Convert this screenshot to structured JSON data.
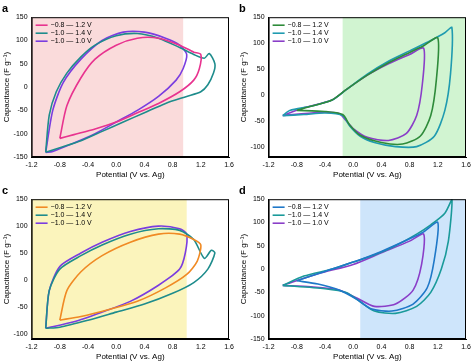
{
  "chart_data": [
    {
      "type": "line",
      "title": "a",
      "x_label": "Potential (V vs. Ag)",
      "y_label": "Capacitance (F g⁻¹)",
      "xlim": [
        -1.2,
        1.6
      ],
      "xticks": [
        -1.2,
        -0.8,
        -0.4,
        {
          "value": 0,
          "label": "0.0"
        },
        0.4,
        0.8,
        1.2,
        1.6
      ],
      "ylim": [
        -150,
        150
      ],
      "yticks": [
        -150,
        -100,
        -50,
        0,
        50,
        100,
        150
      ],
      "legend": "top-left",
      "grid": false,
      "band": {
        "range": [
          -1.2,
          0.95
        ],
        "color": "rgba(248,200,200,0.65)"
      },
      "series": [
        {
          "name": "−0.8 — 1.2 V",
          "color": "#e8338f",
          "x": [
            -0.8,
            -0.7,
            -0.5,
            -0.3,
            0,
            0.3,
            0.6,
            0.9,
            1.1,
            1.2,
            1.18,
            1.1,
            0.9,
            0.6,
            0.3,
            0,
            -0.3,
            -0.6,
            -0.8
          ],
          "y": [
            -110,
            -40,
            20,
            60,
            90,
            105,
            105,
            90,
            75,
            70,
            40,
            15,
            -10,
            -35,
            -55,
            -75,
            -90,
            -102,
            -110
          ]
        },
        {
          "name": "−1.0 — 1.4 V",
          "color": "#1e8c8c",
          "x": [
            -1.0,
            -0.95,
            -0.85,
            -0.7,
            -0.5,
            -0.3,
            0,
            0.3,
            0.6,
            0.9,
            1.1,
            1.25,
            1.32,
            1.4,
            1.38,
            1.3,
            1.2,
            1.0,
            0.7,
            0.4,
            0.1,
            -0.2,
            -0.5,
            -0.8,
            -1.0
          ],
          "y": [
            -140,
            -60,
            -10,
            30,
            65,
            90,
            110,
            115,
            105,
            85,
            70,
            62,
            72,
            50,
            30,
            5,
            -10,
            -20,
            -35,
            -55,
            -75,
            -95,
            -115,
            -130,
            -140
          ]
        },
        {
          "name": "−1.0 — 1.0 V",
          "color": "#7a3de0",
          "x": [
            -1.0,
            -0.9,
            -0.75,
            -0.5,
            -0.2,
            0.1,
            0.4,
            0.7,
            0.9,
            1.0,
            0.95,
            0.85,
            0.6,
            0.3,
            0,
            -0.3,
            -0.6,
            -0.9,
            -1.0
          ],
          "y": [
            -140,
            -50,
            10,
            60,
            100,
            118,
            118,
            105,
            90,
            70,
            40,
            15,
            -20,
            -50,
            -75,
            -100,
            -120,
            -138,
            -140
          ]
        }
      ]
    },
    {
      "type": "line",
      "title": "b",
      "x_label": "Potential (V vs. Ag)",
      "y_label": "Capacitance (F g⁻¹)",
      "xlim": [
        -1.2,
        1.6
      ],
      "xticks": [
        -1.2,
        -0.8,
        -0.4,
        {
          "value": 0,
          "label": "0.0"
        },
        0.4,
        0.8,
        1.2,
        1.6
      ],
      "ylim": [
        -120,
        150
      ],
      "yticks": [
        -100,
        -50,
        0,
        50,
        100,
        150
      ],
      "legend": "top-left",
      "grid": false,
      "band": {
        "range": [
          -0.15,
          1.6
        ],
        "color": "rgba(190,240,190,0.7)"
      },
      "series": [
        {
          "name": "−0.8 — 1.2 V",
          "color": "#2e8b3a",
          "x": [
            -0.8,
            -0.6,
            -0.3,
            -0.1,
            0.2,
            0.5,
            0.8,
            1.0,
            1.2,
            1.18,
            1.1,
            0.95,
            0.7,
            0.4,
            0.1,
            -0.05,
            -0.15,
            -0.4,
            -0.8
          ],
          "y": [
            -30,
            -22,
            -10,
            10,
            38,
            62,
            82,
            95,
            110,
            30,
            -40,
            -80,
            -95,
            -92,
            -78,
            -58,
            -38,
            -32,
            -30
          ]
        },
        {
          "name": "−1.0 — 1.4 V",
          "color": "#1f9bb0",
          "x": [
            -1.0,
            -0.9,
            -0.6,
            -0.3,
            -0.1,
            0.2,
            0.5,
            0.8,
            1.1,
            1.3,
            1.4,
            1.38,
            1.3,
            1.15,
            0.9,
            0.6,
            0.3,
            0.1,
            -0.05,
            -0.15,
            -0.4,
            -0.7,
            -1.0
          ],
          "y": [
            -40,
            -30,
            -22,
            -10,
            10,
            40,
            65,
            85,
            105,
            120,
            130,
            40,
            -30,
            -80,
            -100,
            -100,
            -92,
            -80,
            -60,
            -40,
            -35,
            -38,
            -40
          ]
        },
        {
          "name": "−1.0 — 1.0 V",
          "color": "#8a3ec8",
          "x": [
            -1.0,
            -0.7,
            -0.3,
            -0.1,
            0.2,
            0.5,
            0.8,
            1.0,
            0.98,
            0.9,
            0.75,
            0.5,
            0.2,
            0,
            -0.1,
            -0.2,
            -0.5,
            -1.0
          ],
          "y": [
            -40,
            -25,
            -10,
            10,
            38,
            60,
            78,
            90,
            20,
            -40,
            -75,
            -88,
            -82,
            -65,
            -50,
            -36,
            -34,
            -40
          ]
        }
      ]
    },
    {
      "type": "line",
      "title": "c",
      "x_label": "Potential (V vs. Ag)",
      "y_label": "Capacitance (F g⁻¹)",
      "xlim": [
        -1.2,
        1.6
      ],
      "xticks": [
        -1.2,
        -0.8,
        -0.4,
        {
          "value": 0,
          "label": "0.0"
        },
        0.4,
        0.8,
        1.2,
        1.6
      ],
      "ylim": [
        -110,
        150
      ],
      "yticks": [
        -100,
        -50,
        0,
        50,
        100,
        150
      ],
      "legend": "top-left",
      "grid": false,
      "band": {
        "range": [
          -1.2,
          1.0
        ],
        "color": "rgba(250,240,160,0.7)"
      },
      "series": [
        {
          "name": "−0.8 — 1.2 V",
          "color": "#f08a24",
          "x": [
            -0.8,
            -0.7,
            -0.5,
            -0.2,
            0.2,
            0.6,
            0.9,
            1.1,
            1.2,
            1.15,
            1.0,
            0.7,
            0.3,
            -0.1,
            -0.5,
            -0.8
          ],
          "y": [
            -75,
            -20,
            15,
            45,
            70,
            85,
            85,
            75,
            65,
            35,
            10,
            -15,
            -40,
            -55,
            -68,
            -75
          ]
        },
        {
          "name": "−1.0 — 1.4 V",
          "color": "#1e8c8c",
          "x": [
            -1.0,
            -0.95,
            -0.8,
            -0.5,
            -0.2,
            0.2,
            0.6,
            0.9,
            1.1,
            1.25,
            1.35,
            1.4,
            1.3,
            1.1,
            0.8,
            0.4,
            0,
            -0.4,
            -0.8,
            -1.0
          ],
          "y": [
            -90,
            -20,
            20,
            45,
            65,
            85,
            95,
            92,
            75,
            40,
            55,
            50,
            20,
            -5,
            -25,
            -45,
            -60,
            -75,
            -88,
            -90
          ]
        },
        {
          "name": "−1.0 — 1.0 V",
          "color": "#7a3de0",
          "x": [
            -1.0,
            -0.95,
            -0.8,
            -0.5,
            -0.2,
            0.2,
            0.6,
            0.9,
            1.0,
            0.98,
            0.9,
            0.6,
            0.2,
            -0.2,
            -0.6,
            -1.0
          ],
          "y": [
            -90,
            -20,
            25,
            50,
            70,
            90,
            100,
            95,
            85,
            50,
            20,
            -10,
            -40,
            -60,
            -78,
            -90
          ]
        }
      ]
    },
    {
      "type": "line",
      "title": "d",
      "x_label": "Potential (V vs. Ag)",
      "y_label": "Capacitance (F g⁻¹)",
      "xlim": [
        -1.2,
        1.6
      ],
      "xticks": [
        -1.2,
        -0.8,
        -0.4,
        {
          "value": 0,
          "label": "0.0"
        },
        0.4,
        0.8,
        1.2,
        1.6
      ],
      "ylim": [
        -150,
        150
      ],
      "yticks": [
        -150,
        -100,
        -50,
        0,
        50,
        100,
        150
      ],
      "legend": "top-left",
      "grid": false,
      "band": {
        "range": [
          0.1,
          1.6
        ],
        "color": "rgba(185,218,250,0.7)"
      },
      "series": [
        {
          "name": "−0.8 — 1.2 V",
          "color": "#1f78c8",
          "x": [
            -0.8,
            -0.4,
            0,
            0.4,
            0.8,
            1.0,
            1.2,
            1.15,
            1.05,
            0.85,
            0.55,
            0.25,
            0.05,
            -0.2,
            -0.5,
            -0.8
          ],
          "y": [
            -25,
            -5,
            15,
            38,
            65,
            80,
            100,
            20,
            -40,
            -75,
            -90,
            -85,
            -65,
            -45,
            -32,
            -25
          ]
        },
        {
          "name": "−1.0 — 1.4 V",
          "color": "#1a9a9a",
          "x": [
            -1.0,
            -0.7,
            -0.3,
            0,
            0.3,
            0.6,
            0.9,
            1.1,
            1.3,
            1.4,
            1.35,
            1.25,
            1.1,
            0.9,
            0.6,
            0.3,
            0.1,
            -0.1,
            -0.4,
            -1.0
          ],
          "y": [
            -35,
            -15,
            0,
            15,
            30,
            50,
            75,
            95,
            120,
            150,
            60,
            0,
            -50,
            -80,
            -95,
            -90,
            -70,
            -50,
            -42,
            -35
          ]
        },
        {
          "name": "−1.0 — 1.0 V",
          "color": "#8a3ec8",
          "x": [
            -1.0,
            -0.5,
            0,
            0.4,
            0.8,
            1.0,
            0.97,
            0.85,
            0.6,
            0.3,
            0.05,
            -0.2,
            -0.6,
            -1.0
          ],
          "y": [
            -35,
            -10,
            10,
            35,
            60,
            75,
            10,
            -45,
            -75,
            -80,
            -62,
            -45,
            -38,
            -35
          ]
        }
      ]
    }
  ]
}
